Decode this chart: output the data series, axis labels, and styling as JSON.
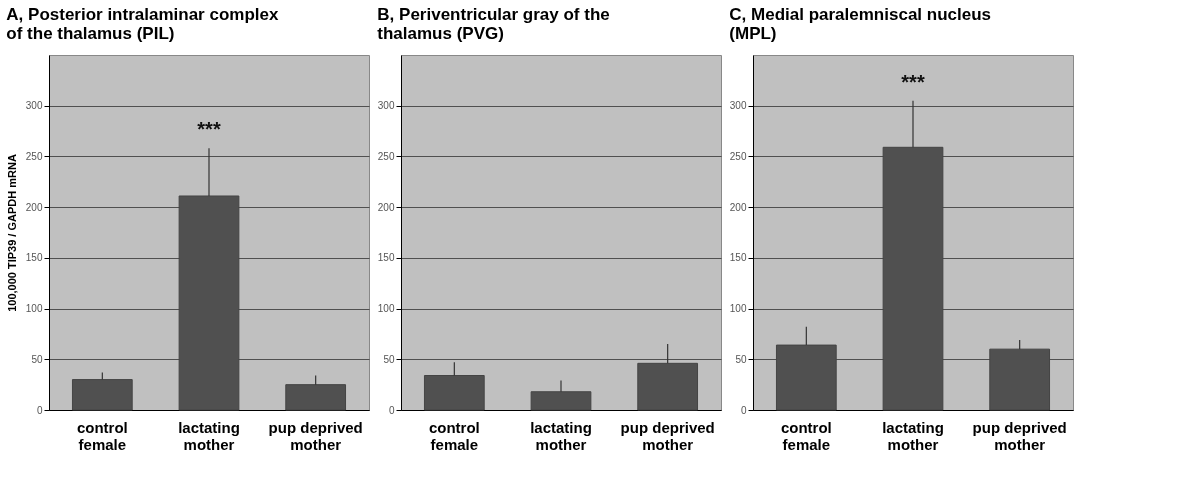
{
  "chart_data": [
    {
      "type": "bar",
      "title": "A, Posterior intralaminar complex of the thalamus (PIL)",
      "ylabel": "100,000  TIP39 / GAPDH mRNA",
      "categories": [
        "control female",
        "lactating mother",
        "pup deprived mother"
      ],
      "values": [
        30,
        211,
        25
      ],
      "errors": [
        [
          30,
          37
        ],
        [
          211,
          258
        ],
        [
          25,
          34
        ]
      ],
      "color": "#505050",
      "ylim": [
        0,
        350
      ],
      "yticks": [
        0,
        50,
        100,
        150,
        200,
        250,
        300
      ],
      "grid": "y",
      "annotations": [
        "***"
      ]
    },
    {
      "type": "bar",
      "title": "B, Periventricular gray of the thalamus (PVG)",
      "categories": [
        "control female",
        "lactating mother",
        "pup deprived mother"
      ],
      "values": [
        34,
        18,
        46
      ],
      "errors": [
        [
          34,
          47
        ],
        [
          18,
          29
        ],
        [
          46,
          65
        ]
      ],
      "color": "#505050",
      "ylim": [
        0,
        350
      ],
      "yticks": [
        0,
        50,
        100,
        150,
        200,
        250,
        300
      ],
      "grid": "y"
    },
    {
      "type": "bar",
      "title": "C, Medial paralemniscal nucleus (MPL)",
      "categories": [
        "control female",
        "lactating mother",
        "pup deprived mother"
      ],
      "values": [
        64,
        259,
        60
      ],
      "errors": [
        [
          64,
          82
        ],
        [
          259,
          305
        ],
        [
          60,
          69
        ]
      ],
      "color": "#505050",
      "ylim": [
        0,
        350
      ],
      "yticks": [
        0,
        50,
        100,
        150,
        200,
        250,
        300
      ],
      "grid": "y",
      "annotations": [
        "***"
      ]
    }
  ]
}
